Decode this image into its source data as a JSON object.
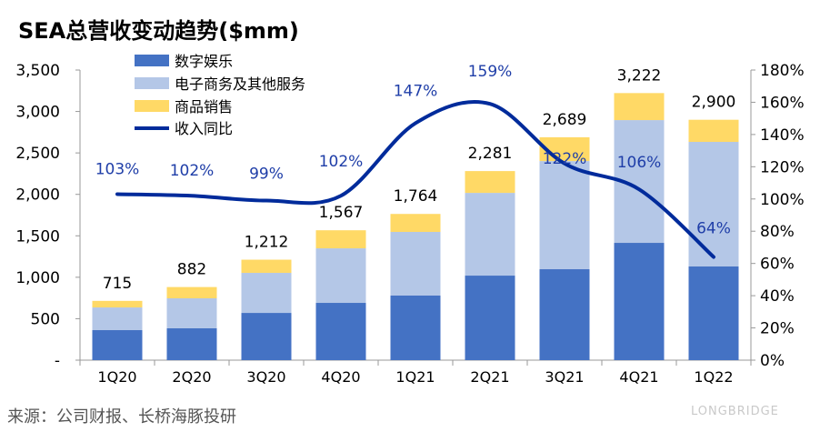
{
  "title": "SEA总营收变动趋势($mm)",
  "source": "来源：公司财报、长桥海豚投研",
  "logo": "LONGBRIDGE",
  "chart_data": {
    "type": "bar",
    "stacked": true,
    "categories": [
      "1Q20",
      "2Q20",
      "3Q20",
      "4Q20",
      "1Q21",
      "2Q21",
      "3Q21",
      "4Q21",
      "1Q22"
    ],
    "series": [
      {
        "name": "数字娱乐",
        "color": "#4472c4",
        "values": [
          362,
          384,
          570,
          691,
          779,
          1020,
          1097,
          1415,
          1130
        ]
      },
      {
        "name": "电子商务及其他服务",
        "color": "#b4c7e7",
        "values": [
          274,
          362,
          483,
          658,
          768,
          998,
          1305,
          1481,
          1503
        ]
      },
      {
        "name": "商品销售",
        "color": "#ffd966",
        "values": [
          79,
          136,
          159,
          218,
          217,
          263,
          287,
          326,
          267
        ]
      }
    ],
    "totals": [
      "715",
      "882",
      "1,212",
      "1,567",
      "1,764",
      "2,281",
      "2,689",
      "3,222",
      "2,900"
    ],
    "line": {
      "name": "收入同比",
      "color": "#002b9b",
      "values": [
        103,
        102,
        99,
        102,
        147,
        159,
        122,
        106,
        64
      ],
      "labels": [
        "103%",
        "102%",
        "99%",
        "102%",
        "147%",
        "159%",
        "122%",
        "106%",
        "64%"
      ]
    },
    "yleft": {
      "ylim": [
        0,
        3500
      ],
      "ticks": [
        "-",
        "500",
        "1,000",
        "1,500",
        "2,000",
        "2,500",
        "3,000",
        "3,500"
      ]
    },
    "yright": {
      "ylim": [
        0,
        180
      ],
      "ticks": [
        "0%",
        "20%",
        "40%",
        "60%",
        "80%",
        "100%",
        "120%",
        "140%",
        "160%",
        "180%"
      ]
    },
    "legend": "top-left"
  }
}
